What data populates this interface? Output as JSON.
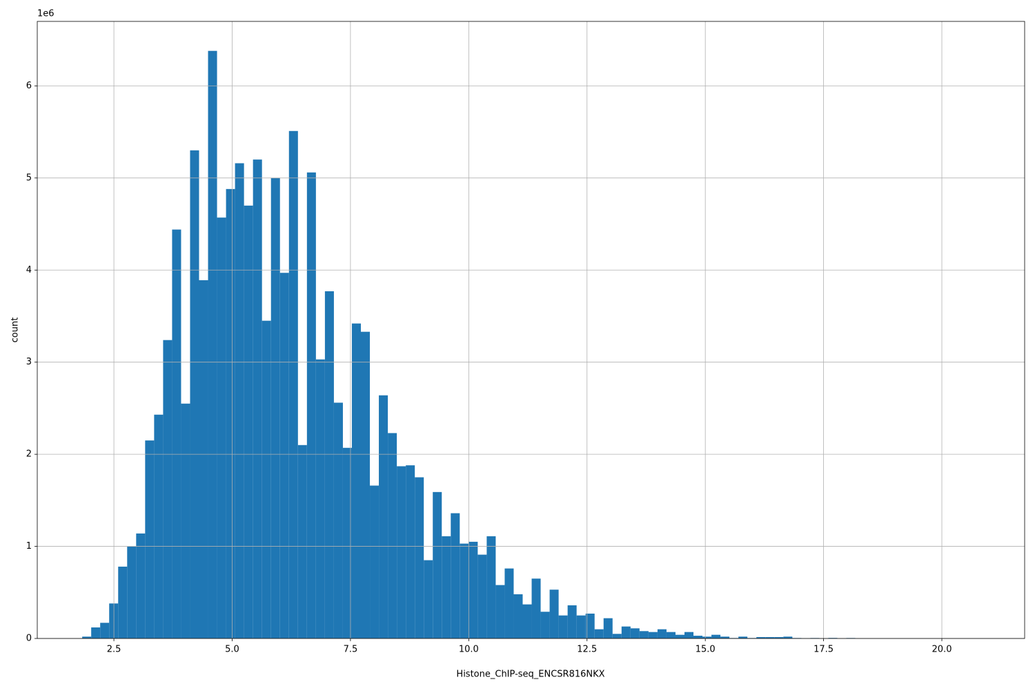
{
  "chart_data": {
    "type": "histogram",
    "x_label": "Histone_ChIP-seq_ENCSR816NKX",
    "y_label": "count",
    "y_offset_label": "1e6",
    "color": "#1f77b4",
    "grid": true,
    "xlim": [
      0.88,
      21.75
    ],
    "ylim": [
      0,
      6700000
    ],
    "xticks": [
      2.5,
      {
        "value": 5,
        "label": "5.0"
      },
      7.5,
      {
        "value": 10,
        "label": "10.0"
      },
      12.5,
      {
        "value": 15,
        "label": "15.0"
      },
      17.5,
      {
        "value": 20,
        "label": "20.0"
      }
    ],
    "yticks": [
      0,
      {
        "value": 1000000,
        "label": "1"
      },
      {
        "value": 2000000,
        "label": "2"
      },
      {
        "value": 3000000,
        "label": "3"
      },
      {
        "value": 4000000,
        "label": "4"
      },
      {
        "value": 5000000,
        "label": "5"
      },
      {
        "value": 6000000,
        "label": "6"
      }
    ],
    "bins": [
      1.83,
      2.02,
      2.21,
      2.4,
      2.59,
      2.78,
      2.97,
      3.16,
      3.35,
      3.54,
      3.73,
      3.92,
      4.11,
      4.3,
      4.49,
      4.68,
      4.87,
      5.06,
      5.25,
      5.44,
      5.63,
      5.82,
      6.01,
      6.2,
      6.39,
      6.58,
      6.77,
      6.96,
      7.15,
      7.34,
      7.53,
      7.72,
      7.91,
      8.1,
      8.29,
      8.48,
      8.67,
      8.86,
      9.05,
      9.24,
      9.43,
      9.62,
      9.81,
      10.0,
      10.19,
      10.38,
      10.57,
      10.76,
      10.95,
      11.14,
      11.33,
      11.52,
      11.71,
      11.9,
      12.09,
      12.28,
      12.47,
      12.66,
      12.85,
      13.04,
      13.23,
      13.42,
      13.61,
      13.8,
      13.99,
      14.18,
      14.37,
      14.56,
      14.75,
      14.94,
      15.13,
      15.32,
      15.51,
      15.7,
      15.89,
      16.08,
      16.27,
      16.46,
      16.65,
      16.84,
      17.03,
      17.22,
      17.41,
      17.6,
      17.79,
      17.98,
      18.17,
      18.36,
      18.55,
      18.74,
      18.93,
      19.12,
      19.31,
      19.5,
      19.69,
      19.88,
      20.07,
      20.26,
      20.45,
      20.64,
      20.83
    ],
    "values": [
      20000,
      120000,
      170000,
      380000,
      780000,
      1000000,
      1140000,
      2150000,
      2430000,
      3240000,
      4440000,
      2550000,
      5300000,
      3890000,
      6380000,
      4570000,
      4880000,
      5160000,
      4700000,
      5200000,
      3450000,
      5000000,
      3970000,
      5510000,
      2100000,
      5060000,
      3030000,
      3770000,
      2560000,
      2070000,
      3420000,
      3330000,
      1660000,
      2640000,
      2230000,
      1870000,
      1880000,
      1750000,
      850000,
      1590000,
      1110000,
      1360000,
      1030000,
      1050000,
      910000,
      1110000,
      580000,
      760000,
      480000,
      370000,
      650000,
      290000,
      530000,
      250000,
      360000,
      250000,
      270000,
      100000,
      220000,
      50000,
      130000,
      110000,
      80000,
      70000,
      100000,
      70000,
      40000,
      70000,
      30000,
      20000,
      40000,
      20000,
      5000,
      20000,
      5000,
      15000,
      15000,
      15000,
      20000,
      5000,
      2000,
      5000,
      1000,
      6000,
      1000,
      5000,
      1000,
      500,
      0,
      0,
      0,
      0,
      0,
      0,
      0,
      0,
      0,
      0,
      0,
      0
    ]
  }
}
